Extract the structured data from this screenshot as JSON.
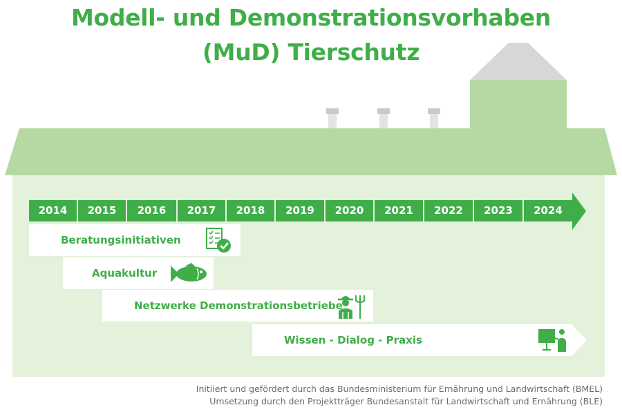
{
  "title": {
    "line1": "Modell- und Demonstrationsvorhaben",
    "line2": "(MuD) Tierschutz"
  },
  "timeline": {
    "years": [
      "2014",
      "2015",
      "2016",
      "2017",
      "2018",
      "2019",
      "2020",
      "2021",
      "2022",
      "2023",
      "2024"
    ]
  },
  "initiatives": [
    {
      "label": "Beratungsinitiativen",
      "icon": "checklist-icon"
    },
    {
      "label": "Aquakultur",
      "icon": "fish-icon"
    },
    {
      "label": "Netzwerke Demonstrationsbetriebe",
      "icon": "farmer-icon"
    },
    {
      "label": "Wissen - Dialog - Praxis",
      "icon": "presentation-icon"
    }
  ],
  "footer": {
    "line1": "Initiiert und gefördert durch das Bundesministerium für Ernährung und Landwirtschaft (BMEL)",
    "line2": "Umsetzung durch den Projektträger Bundesanstalt für Landwirtschaft und Ernährung (BLE)"
  },
  "colors": {
    "accent_green": "#3fae49",
    "roof_green": "#b6d9a3",
    "wall_green": "#e4f1db",
    "chimney_grey": "#d7d7d7"
  }
}
